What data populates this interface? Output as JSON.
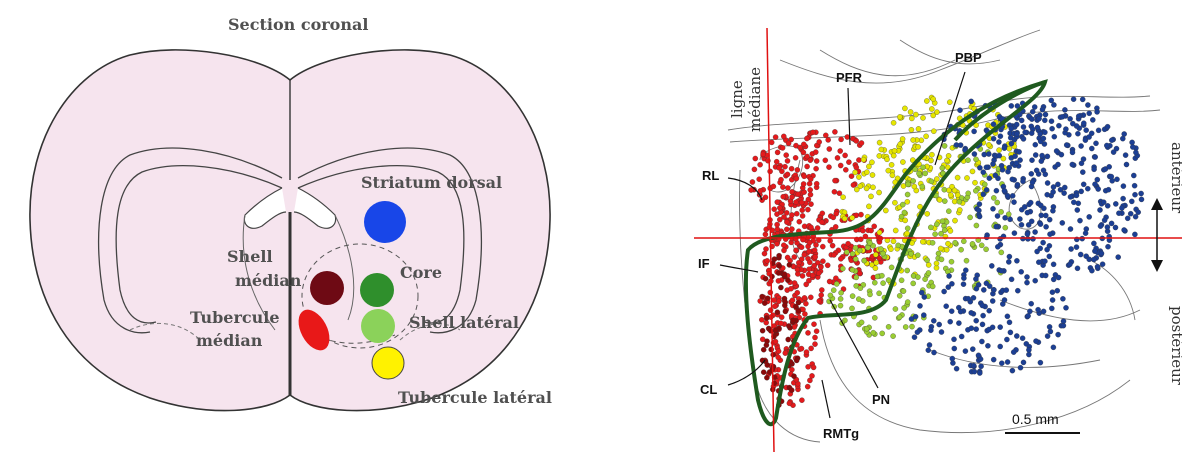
{
  "left_panel": {
    "title": "Section coronal",
    "labels": {
      "striatum_dorsal": "Striatum dorsal",
      "shell_median_1": "Shell",
      "shell_median_2": "médian",
      "core": "Core",
      "tubercule_median_1": "Tubercule",
      "tubercule_median_2": "médian",
      "shell_lateral": "Shell latéral",
      "tubercule_lateral": "Tubercule latéral"
    },
    "colors": {
      "brain_fill": "#f6e4ee",
      "striatum_dorsal": "#1846e8",
      "shell_median": "#6e0a14",
      "core": "#2f8f2c",
      "shell_lateral": "#8bd25a",
      "tubercule_median": "#e81818",
      "tubercule_lateral": "#fff200"
    }
  },
  "right_panel": {
    "axis_labels": {
      "vertical_1": "ligne",
      "vertical_2": "médiane",
      "horizontal_1": "antérieur",
      "horizontal_2": "postérieur"
    },
    "region_labels": {
      "pbp": "PBP",
      "pfr": "PFR",
      "rl": "RL",
      "if": "IF",
      "cl": "CL",
      "pn": "PN",
      "rmtg": "RMTg"
    },
    "scale_bar": "0.5 mm",
    "colors": {
      "axis": "#e01010",
      "outline": "#1f5a1f",
      "dots_red": "#e41a1c",
      "dots_darkred": "#8b0a0a",
      "dots_blue": "#1c3f94",
      "dots_yellow": "#e6e600",
      "dots_lightgreen": "#9acd32"
    }
  }
}
